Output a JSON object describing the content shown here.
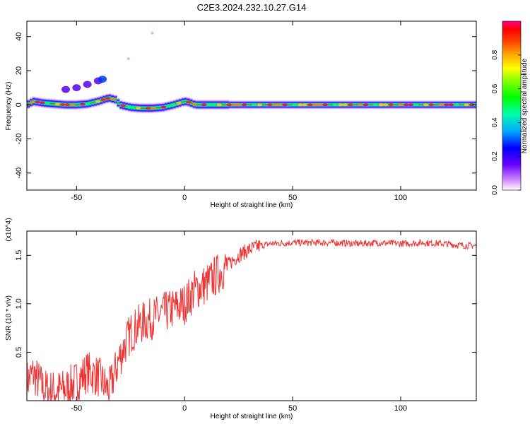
{
  "title": "C2E3.2024.232.10.27.G14",
  "chart_data": [
    {
      "type": "heatmap",
      "xlabel": "Height of straight line (km)",
      "ylabel": "Frequency (Hz)",
      "xlim": [
        -73,
        135
      ],
      "ylim": [
        -50,
        49
      ],
      "xticks": [
        -50,
        0,
        50,
        100
      ],
      "yticks": [
        -40,
        -20,
        0,
        20,
        40
      ],
      "colorbar": {
        "label": "Normalized spectral amplitude",
        "range": [
          0,
          1
        ],
        "ticks": [
          "0.0",
          "0.2",
          "0.4",
          "0.6",
          "0.8"
        ]
      },
      "ridge": {
        "x": [
          -73,
          -70,
          -65,
          -60,
          -55,
          -50,
          -45,
          -40,
          -35,
          -32,
          -30,
          -25,
          -20,
          -15,
          -10,
          -5,
          0,
          2,
          5,
          10,
          20,
          40,
          60,
          80,
          100,
          120,
          135
        ],
        "freq": [
          0,
          2,
          1,
          0.5,
          0,
          0,
          0.5,
          2,
          4,
          3,
          0,
          -1.5,
          -2,
          -2,
          -1.5,
          0,
          2,
          1.5,
          0,
          0,
          0,
          0,
          0,
          0,
          0,
          0,
          0
        ]
      },
      "branch": {
        "x": [
          -55,
          -50,
          -45,
          -40,
          -38
        ],
        "freq": [
          9,
          10,
          12,
          14,
          15
        ]
      },
      "outliers": [
        {
          "x": -15,
          "freq": 42
        },
        {
          "x": -26,
          "freq": 27
        }
      ]
    },
    {
      "type": "line",
      "xlabel": "Height of straight line (km)",
      "ylabel": "SNR (10 * v/v)",
      "multiplier": "(x10^4)",
      "xlim": [
        -73,
        135
      ],
      "ylim": [
        0,
        1.75
      ],
      "xticks": [
        -50,
        0,
        50,
        100
      ],
      "yticks": [
        0.5,
        1.0,
        1.5
      ],
      "series": [
        {
          "color": "#ee3333",
          "x": [
            -73,
            -70,
            -65,
            -60,
            -55,
            -50,
            -45,
            -40,
            -35,
            -30,
            -25,
            -20,
            -15,
            -10,
            -5,
            0,
            5,
            10,
            15,
            20,
            25,
            30,
            35,
            40,
            50,
            60,
            70,
            80,
            90,
            100,
            110,
            120,
            130,
            135
          ],
          "values": [
            0.2,
            0.28,
            0.12,
            0.1,
            0.12,
            0.2,
            0.3,
            0.25,
            0.1,
            0.45,
            0.7,
            0.8,
            0.85,
            0.9,
            0.95,
            1.0,
            1.15,
            1.2,
            1.3,
            1.4,
            1.5,
            1.56,
            1.6,
            1.62,
            1.63,
            1.63,
            1.63,
            1.62,
            1.63,
            1.62,
            1.63,
            1.62,
            1.6,
            1.6
          ]
        }
      ]
    }
  ]
}
